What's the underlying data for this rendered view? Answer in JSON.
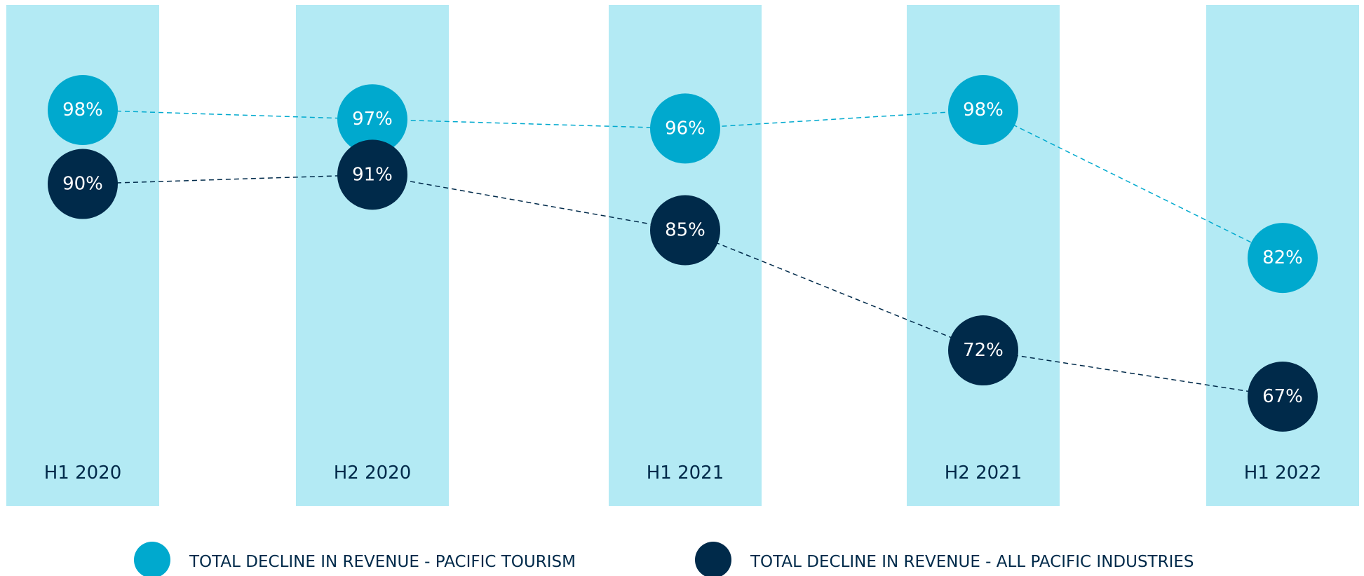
{
  "chart_data": {
    "type": "line",
    "categories": [
      "H1 2020",
      "H2 2020",
      "H1 2021",
      "H2 2021",
      "H1 2022"
    ],
    "band_color": "#b3eaf4",
    "series": [
      {
        "name": "TOTAL DECLINE IN REVENUE - PACIFIC TOURISM",
        "color": "#00a9ce",
        "values": [
          98,
          97,
          96,
          98,
          82
        ],
        "value_labels": [
          "98%",
          "97%",
          "96%",
          "98%",
          "82%"
        ]
      },
      {
        "name": "TOTAL DECLINE IN REVENUE - ALL PACIFIC INDUSTRIES",
        "color": "#002a4a",
        "values": [
          90,
          91,
          85,
          72,
          67
        ],
        "value_labels": [
          "90%",
          "91%",
          "85%",
          "72%",
          "67%"
        ]
      }
    ]
  }
}
